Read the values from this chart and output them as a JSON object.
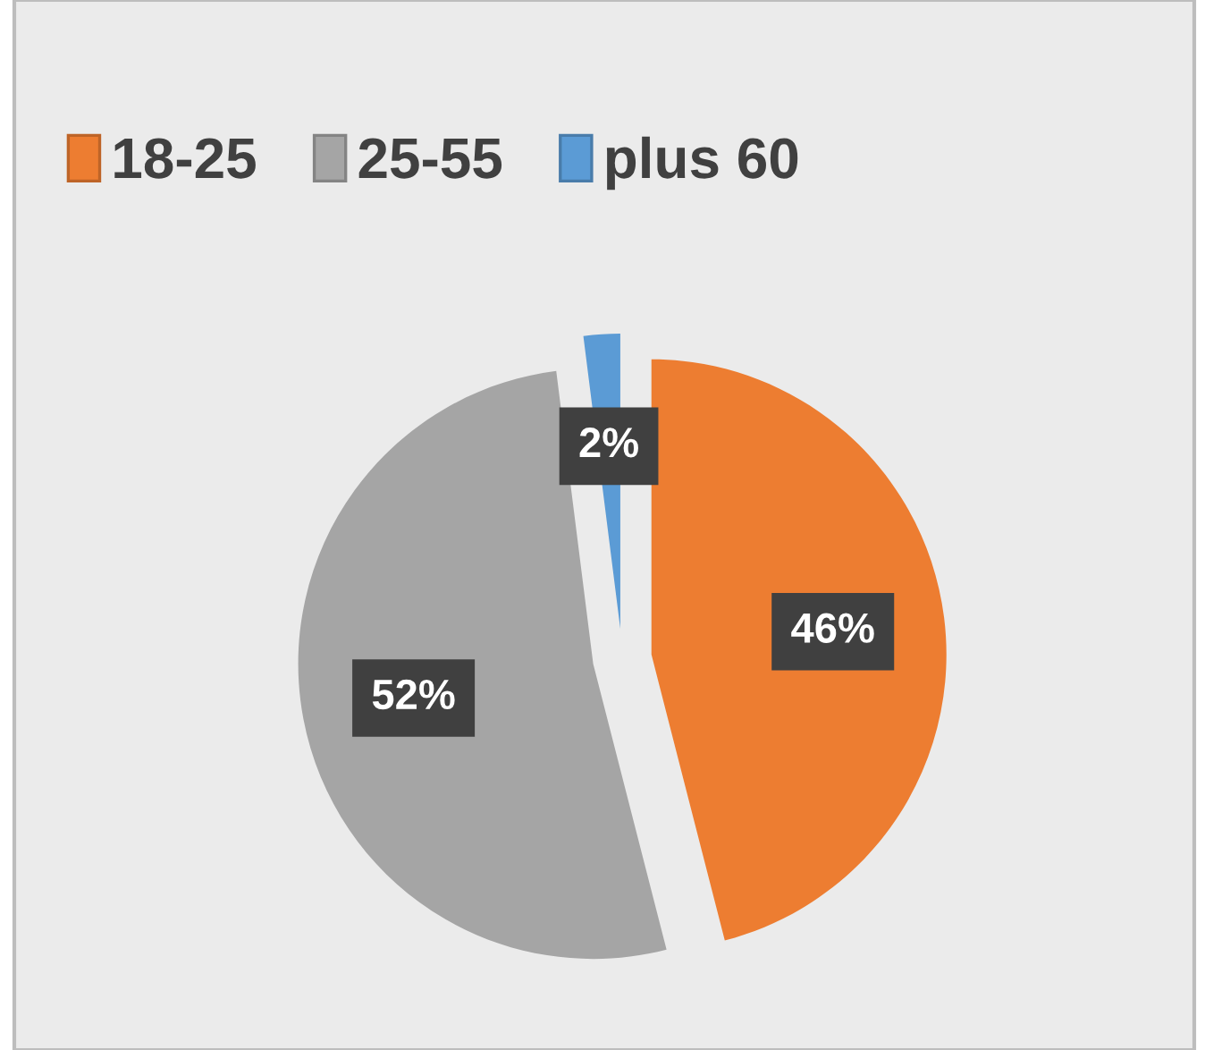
{
  "chart_data": {
    "type": "pie",
    "categories": [
      "18-25",
      "25-55",
      "plus 60"
    ],
    "values": [
      46,
      52,
      2
    ],
    "colors": [
      "#ed7d31",
      "#a5a5a5",
      "#5b9bd5"
    ],
    "value_labels": [
      "46%",
      "52%",
      "2%"
    ],
    "legend": "top left"
  }
}
